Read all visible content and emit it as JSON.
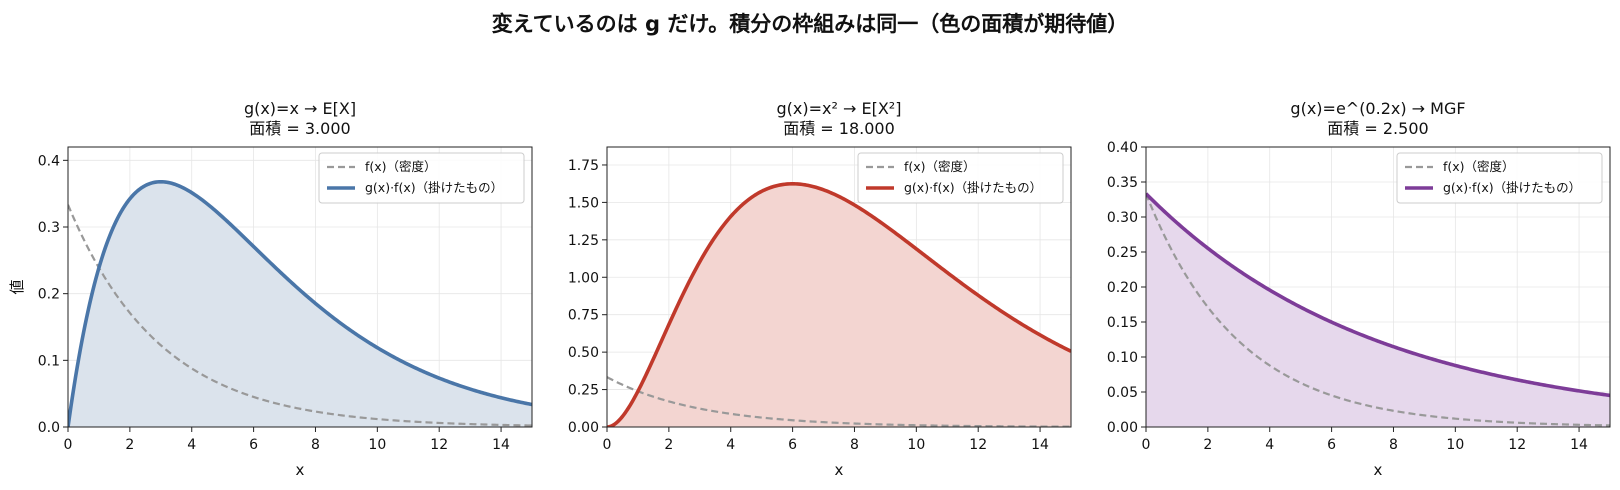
{
  "suptitle": "変えているのは g だけ。積分の枠組みは同一（色の面積が期待値）",
  "chart_data": [
    {
      "type": "line",
      "title": "g(x)=x  → E[X]",
      "subtitle": "面積 = 3.000",
      "xlabel": "x",
      "ylabel": "値",
      "xlim": [
        0,
        15
      ],
      "ylim": [
        0,
        0.42
      ],
      "xticks": [
        0,
        2,
        4,
        6,
        8,
        10,
        12,
        14
      ],
      "yticks": [
        0.0,
        0.1,
        0.2,
        0.3,
        0.4
      ],
      "ytick_labels": [
        "0.0",
        "0.1",
        "0.2",
        "0.3",
        "0.4"
      ],
      "grid": true,
      "legend_position": "top-right",
      "color": "#4a76a8",
      "fill_color": "#dbe3ec",
      "density": {
        "name": "f(x)（密度）",
        "rate": 0.3333,
        "x": [
          0,
          1,
          2,
          3,
          4,
          5,
          6,
          8,
          10,
          12,
          15
        ],
        "y": [
          0.333,
          0.239,
          0.171,
          0.123,
          0.088,
          0.063,
          0.045,
          0.023,
          0.012,
          0.006,
          0.002
        ]
      },
      "series": [
        {
          "name": "g(x)·f(x)（掛けたもの）",
          "g": "x",
          "x": [
            0,
            1,
            2,
            3,
            4,
            5,
            6,
            8,
            10,
            12,
            15
          ],
          "y": [
            0.0,
            0.239,
            0.342,
            0.368,
            0.351,
            0.315,
            0.271,
            0.185,
            0.119,
            0.073,
            0.034
          ]
        }
      ]
    },
    {
      "type": "line",
      "title": "g(x)=x²  → E[X²]",
      "subtitle": "面積 = 18.000",
      "xlabel": "x",
      "ylabel": "",
      "xlim": [
        0,
        15
      ],
      "ylim": [
        0,
        1.87
      ],
      "xticks": [
        0,
        2,
        4,
        6,
        8,
        10,
        12,
        14
      ],
      "yticks": [
        0.0,
        0.25,
        0.5,
        0.75,
        1.0,
        1.25,
        1.5,
        1.75
      ],
      "ytick_labels": [
        "0.00",
        "0.25",
        "0.50",
        "0.75",
        "1.00",
        "1.25",
        "1.50",
        "1.75"
      ],
      "grid": true,
      "legend_position": "top-right",
      "color": "#c0392b",
      "fill_color": "#f3d5d1",
      "density": {
        "name": "f(x)（密度）",
        "rate": 0.3333,
        "x": [
          0,
          1,
          2,
          3,
          4,
          5,
          6,
          8,
          10,
          12,
          15
        ],
        "y": [
          0.333,
          0.239,
          0.171,
          0.123,
          0.088,
          0.063,
          0.045,
          0.023,
          0.012,
          0.006,
          0.002
        ]
      },
      "series": [
        {
          "name": "g(x)·f(x)（掛けたもの）",
          "g": "x^2",
          "x": [
            0,
            1,
            2,
            3,
            4,
            5,
            6,
            8,
            10,
            12,
            15
          ],
          "y": [
            0.0,
            0.239,
            0.684,
            1.104,
            1.405,
            1.574,
            1.624,
            1.483,
            1.189,
            0.88,
            0.505
          ]
        }
      ]
    },
    {
      "type": "line",
      "title": "g(x)=e^(0.2x)  → MGF",
      "subtitle": "面積 = 2.500",
      "xlabel": "x",
      "ylabel": "",
      "xlim": [
        0,
        15
      ],
      "ylim": [
        0,
        0.4
      ],
      "xticks": [
        0,
        2,
        4,
        6,
        8,
        10,
        12,
        14
      ],
      "yticks": [
        0.0,
        0.05,
        0.1,
        0.15,
        0.2,
        0.25,
        0.3,
        0.35,
        0.4
      ],
      "ytick_labels": [
        "0.00",
        "0.05",
        "0.10",
        "0.15",
        "0.20",
        "0.25",
        "0.30",
        "0.35",
        "0.40"
      ],
      "grid": true,
      "legend_position": "top-right",
      "color": "#7d3c98",
      "fill_color": "#e6d8ec",
      "density": {
        "name": "f(x)（密度）",
        "rate": 0.3333,
        "x": [
          0,
          1,
          2,
          3,
          4,
          5,
          6,
          8,
          10,
          12,
          15
        ],
        "y": [
          0.333,
          0.239,
          0.171,
          0.123,
          0.088,
          0.063,
          0.045,
          0.023,
          0.012,
          0.006,
          0.002
        ]
      },
      "series": [
        {
          "name": "g(x)·f(x)（掛けたもの）",
          "g": "e^(0.2x)",
          "x": [
            0,
            1,
            2,
            3,
            4,
            5,
            6,
            8,
            10,
            12,
            15
          ],
          "y": [
            0.333,
            0.292,
            0.256,
            0.224,
            0.196,
            0.172,
            0.151,
            0.116,
            0.089,
            0.068,
            0.045
          ]
        }
      ]
    }
  ]
}
